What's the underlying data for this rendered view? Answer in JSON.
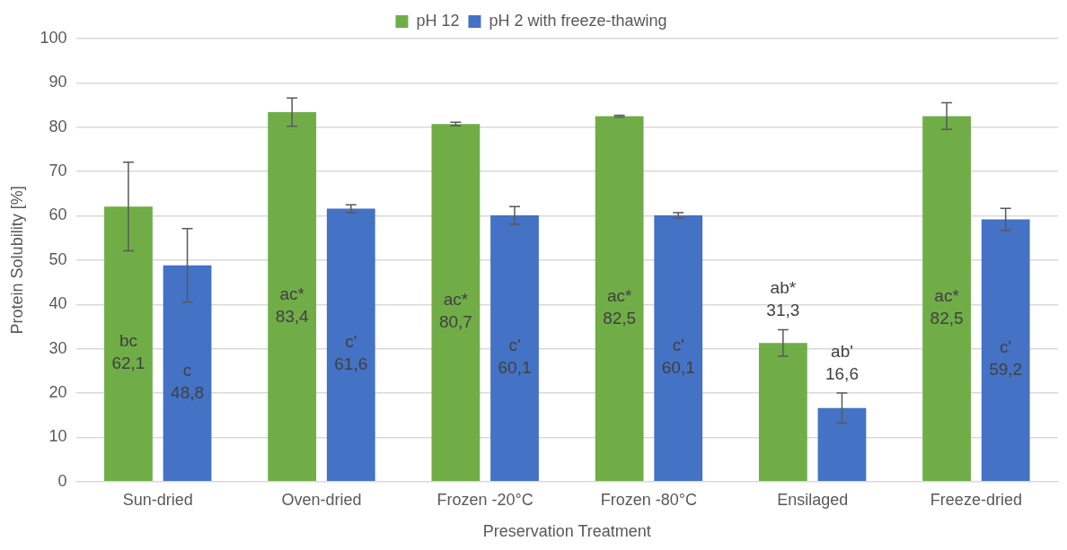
{
  "chart_data": {
    "type": "bar",
    "xlabel": "Preservation Treatment",
    "ylabel": "Protein Solubility [%]",
    "categories": [
      "Sun-dried",
      "Oven-dried",
      "Frozen -20°C",
      "Frozen -80°C",
      "Ensilaged",
      "Freeze-dried"
    ],
    "series": [
      {
        "name": "pH 12",
        "color": "#70ad47",
        "values": [
          62.1,
          83.4,
          80.7,
          82.5,
          31.3,
          82.5
        ],
        "errors": [
          10,
          3.2,
          0.4,
          0.2,
          3,
          3
        ],
        "value_labels": [
          "bc\n62,1",
          "ac*\n83,4",
          "ac*\n80,7",
          "ac*\n82,5",
          "ab*\n31,3",
          "ac*\n82,5"
        ]
      },
      {
        "name": "pH 2 with freeze-thawing",
        "color": "#4472c4",
        "values": [
          48.8,
          61.6,
          60.1,
          60.1,
          16.6,
          59.2
        ],
        "errors": [
          8.3,
          0.9,
          2,
          0.6,
          3.4,
          2.5
        ],
        "value_labels": [
          "c\n48,8",
          "c'\n61,6",
          "c'\n60,1",
          "c'\n60,1",
          "ab'\n16,6",
          "c'\n59,2"
        ]
      }
    ],
    "ylim": [
      0,
      100
    ],
    "yticks": [
      0,
      10,
      20,
      30,
      40,
      50,
      60,
      70,
      80,
      90,
      100
    ],
    "grid": "y",
    "legend": "top"
  }
}
